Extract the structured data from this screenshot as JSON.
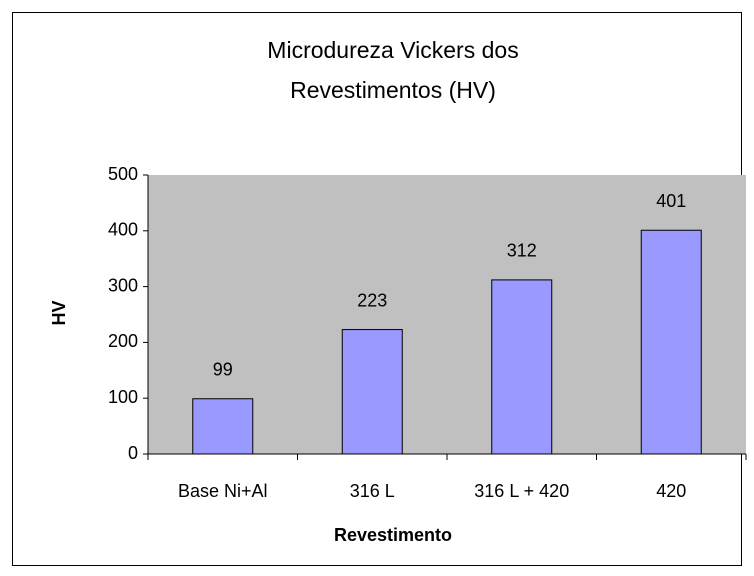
{
  "chart_data": {
    "type": "bar",
    "title": "Microdureza Vickers dos Revestimentos (HV)",
    "x_label": "Revestimento",
    "y_label": "HV",
    "categories": [
      "Base Ni+Al",
      "316 L",
      "316 L + 420",
      "420"
    ],
    "values": [
      99,
      223,
      312,
      401
    ],
    "color": "#9999ff",
    "ylim": [
      0,
      500
    ],
    "yticks": [
      0,
      100,
      200,
      300,
      400,
      500
    ],
    "grid": false,
    "plot_background": "#c0c0c0"
  }
}
